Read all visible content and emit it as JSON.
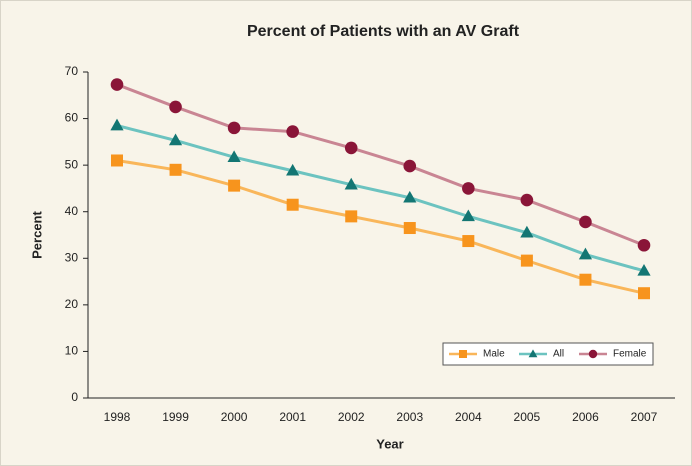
{
  "chart_data": {
    "type": "line",
    "title": "Percent of Patients with an AV Graft",
    "x_label": "Year",
    "y_label": "Percent",
    "categories": [
      "1998",
      "1999",
      "2000",
      "2001",
      "2002",
      "2003",
      "2004",
      "2005",
      "2006",
      "2007"
    ],
    "series": [
      {
        "name": "Male",
        "color": "#f9b65a",
        "marker_color": "#f7941d",
        "marker": "square",
        "values": [
          51,
          49,
          45.6,
          41.5,
          39,
          36.5,
          33.7,
          29.5,
          25.4,
          22.5
        ]
      },
      {
        "name": "All",
        "color": "#6cc3c0",
        "marker_color": "#137673",
        "marker": "triangle",
        "values": [
          58.5,
          55.3,
          51.7,
          48.8,
          45.8,
          43,
          39,
          35.5,
          30.8,
          27.3
        ]
      },
      {
        "name": "Female",
        "color": "#c98593",
        "marker_color": "#8a1538",
        "marker": "circle",
        "values": [
          67.3,
          62.5,
          58,
          57.2,
          53.7,
          49.8,
          45,
          42.5,
          37.8,
          32.8
        ]
      }
    ],
    "ylim": [
      0,
      70
    ],
    "yticks": [
      0,
      10,
      20,
      30,
      40,
      50,
      60,
      70
    ],
    "grid": false,
    "legend": "bottom-right"
  }
}
